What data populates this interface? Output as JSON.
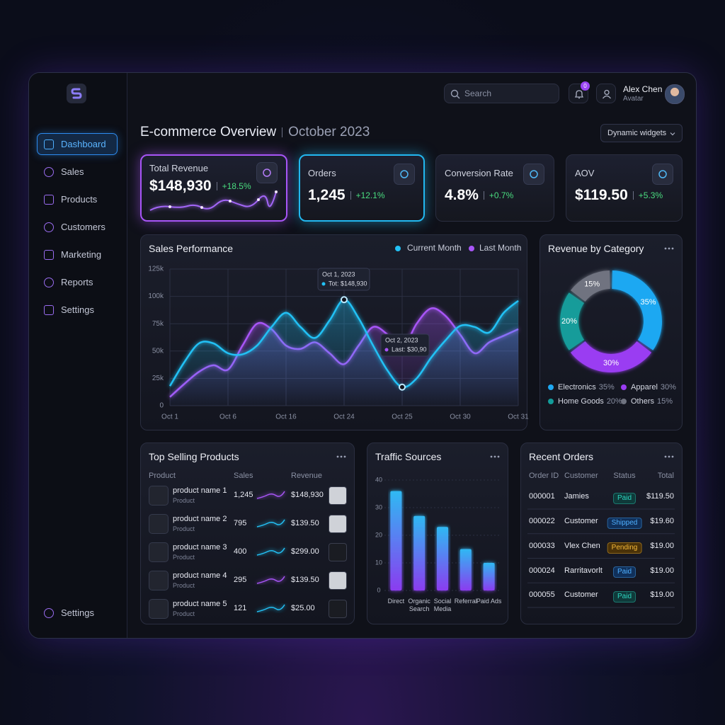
{
  "sidebar": {
    "nav": [
      "Dashboard",
      "Sales",
      "Products",
      "Customers",
      "Marketing",
      "Reports",
      "Settings"
    ],
    "footer": "Settings"
  },
  "header": {
    "search": "Search",
    "badge": "0",
    "user": "Alex Chen",
    "role": "Avatar"
  },
  "page": {
    "title": "E-commerce Overview",
    "subtitle": "October 2023",
    "control": "Dynamic widgets"
  },
  "kpis": [
    {
      "label": "Total Revenue",
      "value": "$148,930",
      "change": "+18.5%"
    },
    {
      "label": "Orders",
      "value": "1,245",
      "change": "+12.1%"
    },
    {
      "label": "Conversion Rate",
      "value": "4.8%",
      "change": "+0.7%"
    },
    {
      "label": "AOV",
      "value": "$119.50",
      "change": "+5.3%"
    }
  ],
  "chart_data": [
    {
      "type": "line",
      "title": "Sales Performance",
      "categories": [
        "Oct 1",
        null,
        null,
        null,
        "Oct 6",
        null,
        null,
        null,
        "Oct 16",
        null,
        null,
        null,
        "Oct 24",
        null,
        null,
        null,
        "Oct 25",
        null,
        null,
        null,
        "Oct 30",
        null,
        null,
        null,
        "Oct 31"
      ],
      "series": [
        {
          "name": "Current Month",
          "color": "#22c1f5",
          "values": [
            18000,
            40000,
            57000,
            57000,
            48000,
            47000,
            55000,
            72000,
            85000,
            72000,
            62000,
            78000,
            97000,
            80000,
            55000,
            32000,
            17000,
            25000,
            44000,
            60000,
            73000,
            72000,
            67000,
            85000,
            96000
          ]
        },
        {
          "name": "Last Month",
          "color": "#a855f7",
          "values": [
            8000,
            20000,
            31000,
            37000,
            33000,
            55000,
            75000,
            70000,
            55000,
            52000,
            58000,
            48000,
            38000,
            55000,
            72000,
            65000,
            52000,
            75000,
            89000,
            82000,
            65000,
            48000,
            58000,
            64000,
            70000
          ]
        }
      ],
      "ylim": [
        0,
        125000
      ],
      "yticks": [
        0,
        {
          "value": 25000,
          "label": "25k"
        },
        {
          "value": 50000,
          "label": "50k"
        },
        {
          "value": 75000,
          "label": "75k"
        },
        {
          "value": 100000,
          "label": "100k"
        },
        {
          "value": 125000,
          "label": "125k"
        }
      ],
      "grid": true,
      "annotations": [
        {
          "title": "Oct 1, 2023",
          "text": "Tot: $148,930"
        },
        {
          "title": "Oct 2, 2023",
          "text": "Last: $30,90"
        }
      ]
    },
    {
      "type": "donut",
      "title": "Revenue by Category",
      "categories": [
        "Electronics",
        "Apparel",
        "Home Goods",
        "Others"
      ],
      "values": [
        35,
        30,
        20,
        15
      ],
      "value_labels": [
        "35%",
        "30%",
        "20%",
        "15%"
      ],
      "colors": [
        "#1fa8f2",
        "#9a3cf2",
        "#139c9a",
        "#6f7380"
      ]
    },
    {
      "type": "bar",
      "title": "Traffic Sources",
      "categories": [
        "Direct",
        "Organic Search",
        "Social Media",
        "Referral",
        "Paid Ads"
      ],
      "values": [
        36,
        27,
        23,
        15,
        10
      ],
      "ylim": [
        0,
        40
      ],
      "yticks": [
        0,
        10,
        20,
        30,
        40
      ],
      "grid": true,
      "gradient": [
        "#2fb9f3",
        "#8b3cf0"
      ]
    }
  ],
  "top_products": {
    "title": "Top Selling Products",
    "columns": [
      "Product",
      "Sales",
      "Revenue"
    ],
    "rows": [
      {
        "name": "product name 1",
        "type": "Product",
        "sales": "1,245",
        "revenue": "$148,930"
      },
      {
        "name": "product name 2",
        "type": "Product",
        "sales": "795",
        "revenue": "$139.50"
      },
      {
        "name": "product name 3",
        "type": "Product",
        "sales": "400",
        "revenue": "$299.00"
      },
      {
        "name": "product name 4",
        "type": "Product",
        "sales": "295",
        "revenue": "$139.50"
      },
      {
        "name": "product name 5",
        "type": "Product",
        "sales": "121",
        "revenue": "$25.00"
      }
    ]
  },
  "recent_orders": {
    "title": "Recent Orders",
    "columns": [
      "Order ID",
      "Customer",
      "Status",
      "Total"
    ],
    "rows": [
      {
        "id": "000001",
        "customer": "Jamies",
        "status": "Paid",
        "total": "$119.50"
      },
      {
        "id": "000022",
        "customer": "Customer",
        "status": "Shipped",
        "total": "$19.60"
      },
      {
        "id": "000033",
        "customer": "Vlex Chen",
        "status": "Pending",
        "total": "$19.00"
      },
      {
        "id": "000024",
        "customer": "Rarritavorlt",
        "status": "Paid",
        "total": "$19.00"
      },
      {
        "id": "000055",
        "customer": "Customer",
        "status": "Paid",
        "total": "$19.00"
      }
    ]
  }
}
